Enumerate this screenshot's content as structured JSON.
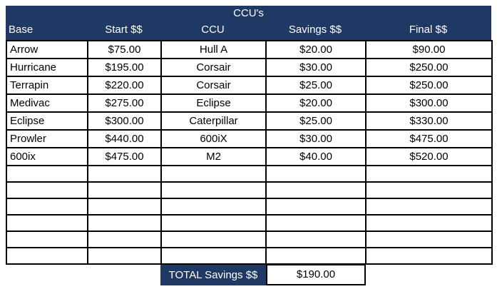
{
  "title": "CCU's",
  "columns": [
    "Base",
    "Start $$",
    "CCU",
    "Savings $$",
    "Final $$"
  ],
  "rows": [
    {
      "base": "Arrow",
      "start": "$75.00",
      "ccu": "Hull A",
      "savings": "$20.00",
      "final": "$90.00"
    },
    {
      "base": "Hurricane",
      "start": "$195.00",
      "ccu": "Corsair",
      "savings": "$30.00",
      "final": "$250.00"
    },
    {
      "base": "Terrapin",
      "start": "$220.00",
      "ccu": "Corsair",
      "savings": "$25.00",
      "final": "$250.00"
    },
    {
      "base": "Medivac",
      "start": "$275.00",
      "ccu": "Eclipse",
      "savings": "$20.00",
      "final": "$300.00"
    },
    {
      "base": "Eclipse",
      "start": "$300.00",
      "ccu": "Caterpillar",
      "savings": "$25.00",
      "final": "$330.00"
    },
    {
      "base": "Prowler",
      "start": "$440.00",
      "ccu": "600iX",
      "savings": "$30.00",
      "final": "$475.00"
    },
    {
      "base": "600ix",
      "start": "$475.00",
      "ccu": "M2",
      "savings": "$40.00",
      "final": "$520.00"
    }
  ],
  "empty_row_count": 6,
  "total": {
    "label": "TOTAL Savings $$",
    "value": "$190.00"
  },
  "colors": {
    "header_bg": "#1F3864",
    "header_text": "#FFFFFF",
    "cell_text": "#000000",
    "border": "#000000",
    "background": "#FFFFFF"
  }
}
